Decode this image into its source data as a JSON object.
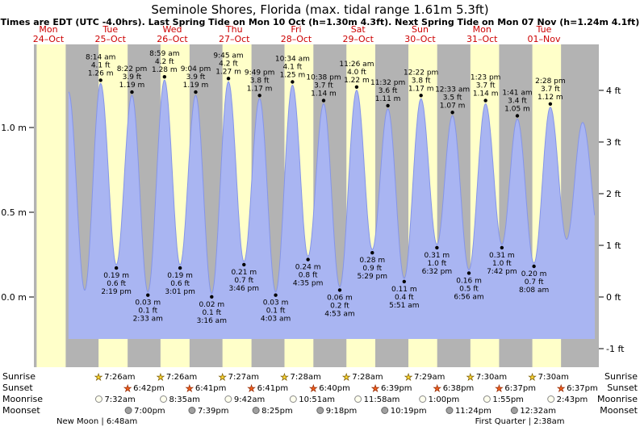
{
  "title": "Seminole Shores, Florida (max. tidal range 1.61m 5.3ft)",
  "subtitle": "Times are EDT (UTC -4.0hrs). Last Spring Tide on Mon 10 Oct (h=1.30m 4.3ft). Next Spring Tide on Mon 07 Nov (h=1.24m 4.1ft)",
  "days": [
    {
      "name": "Mon",
      "date": "24–Oct"
    },
    {
      "name": "Tue",
      "date": "25–Oct"
    },
    {
      "name": "Wed",
      "date": "26–Oct"
    },
    {
      "name": "Thu",
      "date": "27–Oct"
    },
    {
      "name": "Fri",
      "date": "28–Oct"
    },
    {
      "name": "Sat",
      "date": "29–Oct"
    },
    {
      "name": "Sun",
      "date": "30–Oct"
    },
    {
      "name": "Mon",
      "date": "31–Oct"
    },
    {
      "name": "Tue",
      "date": "01–Nov"
    }
  ],
  "y_axis": {
    "left": [
      {
        "text": "1.0 m",
        "value": 1.0
      },
      {
        "text": "0.5 m",
        "value": 0.5
      },
      {
        "text": "0.0 m",
        "value": 0.0
      }
    ],
    "right": [
      {
        "text": "4 ft",
        "ft": 4
      },
      {
        "text": "3 ft",
        "ft": 3
      },
      {
        "text": "2 ft",
        "ft": 2
      },
      {
        "text": "1 ft",
        "ft": 1
      },
      {
        "text": "0 ft",
        "ft": 0
      },
      {
        "text": "-1 ft",
        "ft": -1
      }
    ]
  },
  "colors": {
    "day_label": "#cc0000",
    "night_band": "#b3b3b3",
    "daylight_band": "#ffffc9",
    "water": "#a9b5f2",
    "water_edge": "#8595e8",
    "marker": "#000000",
    "sunrise_star_fill": "#ffd633",
    "sunrise_star_stroke": "#7a5c00",
    "sunset_star_fill": "#f06020",
    "sunset_star_stroke": "#952800",
    "moonrise_fill": "#ffffee",
    "moonrise_stroke": "#888888",
    "moonset_fill": "#a0a0a0",
    "moonset_stroke": "#666666"
  },
  "chart_data": {
    "type": "area",
    "series_name": "tide height",
    "units": [
      "m",
      "ft"
    ],
    "ylim_m": [
      -0.25,
      1.45
    ],
    "grid": false,
    "highs": [
      {
        "day": 1,
        "time": "8:14 am",
        "ft_label": "4.1 ft",
        "m_label": "1.26 m",
        "m": 1.26
      },
      {
        "day": 1,
        "time": "8:22 pm",
        "ft_label": "3.9 ft",
        "m_label": "1.19 m",
        "m": 1.19
      },
      {
        "day": 2,
        "time": "8:59 am",
        "ft_label": "4.2 ft",
        "m_label": "1.28 m",
        "m": 1.28
      },
      {
        "day": 2,
        "time": "9:04 pm",
        "ft_label": "3.9 ft",
        "m_label": "1.19 m",
        "m": 1.19
      },
      {
        "day": 3,
        "time": "9:45 am",
        "ft_label": "4.2 ft",
        "m_label": "1.27 m",
        "m": 1.27
      },
      {
        "day": 3,
        "time": "9:49 pm",
        "ft_label": "3.8 ft",
        "m_label": "1.17 m",
        "m": 1.17
      },
      {
        "day": 4,
        "time": "10:34 am",
        "ft_label": "4.1 ft",
        "m_label": "1.25 m",
        "m": 1.25
      },
      {
        "day": 4,
        "time": "10:38 pm",
        "ft_label": "3.7 ft",
        "m_label": "1.14 m",
        "m": 1.14
      },
      {
        "day": 5,
        "time": "11:26 am",
        "ft_label": "4.0 ft",
        "m_label": "1.22 m",
        "m": 1.22
      },
      {
        "day": 5,
        "time": "11:32 pm",
        "ft_label": "3.6 ft",
        "m_label": "1.11 m",
        "m": 1.11
      },
      {
        "day": 6,
        "time": "12:22 pm",
        "ft_label": "3.8 ft",
        "m_label": "1.17 m",
        "m": 1.17
      },
      {
        "day": 7,
        "time": "12:33 am",
        "ft_label": "3.5 ft",
        "m_label": "1.07 m",
        "m": 1.07
      },
      {
        "day": 7,
        "time": "1:23 pm",
        "ft_label": "3.7 ft",
        "m_label": "1.14 m",
        "m": 1.14
      },
      {
        "day": 8,
        "time": "1:41 am",
        "ft_label": "3.4 ft",
        "m_label": "1.05 m",
        "m": 1.05
      },
      {
        "day": 8,
        "time": "2:28 pm",
        "ft_label": "3.7 ft",
        "m_label": "1.12 m",
        "m": 1.12
      }
    ],
    "lows": [
      {
        "day": 1,
        "time": "2:19 pm",
        "ft_label": "0.6 ft",
        "m_label": "0.19 m",
        "m": 0.19
      },
      {
        "day": 2,
        "time": "2:33 am",
        "ft_label": "0.1 ft",
        "m_label": "0.03 m",
        "m": 0.03
      },
      {
        "day": 2,
        "time": "3:01 pm",
        "ft_label": "0.6 ft",
        "m_label": "0.19 m",
        "m": 0.19
      },
      {
        "day": 3,
        "time": "3:16 am",
        "ft_label": "0.1 ft",
        "m_label": "0.02 m",
        "m": 0.02
      },
      {
        "day": 3,
        "time": "3:46 pm",
        "ft_label": "0.7 ft",
        "m_label": "0.21 m",
        "m": 0.21
      },
      {
        "day": 4,
        "time": "4:03 am",
        "ft_label": "0.1 ft",
        "m_label": "0.03 m",
        "m": 0.03
      },
      {
        "day": 4,
        "time": "4:35 pm",
        "ft_label": "0.8 ft",
        "m_label": "0.24 m",
        "m": 0.24
      },
      {
        "day": 5,
        "time": "4:53 am",
        "ft_label": "0.2 ft",
        "m_label": "0.06 m",
        "m": 0.06
      },
      {
        "day": 5,
        "time": "5:29 pm",
        "ft_label": "0.9 ft",
        "m_label": "0.28 m",
        "m": 0.28
      },
      {
        "day": 6,
        "time": "5:51 am",
        "ft_label": "0.4 ft",
        "m_label": "0.11 m",
        "m": 0.11
      },
      {
        "day": 6,
        "time": "6:32 pm",
        "ft_label": "1.0 ft",
        "m_label": "0.31 m",
        "m": 0.31
      },
      {
        "day": 7,
        "time": "6:56 am",
        "ft_label": "0.5 ft",
        "m_label": "0.16 m",
        "m": 0.16
      },
      {
        "day": 7,
        "time": "7:42 pm",
        "ft_label": "1.0 ft",
        "m_label": "0.31 m",
        "m": 0.31
      },
      {
        "day": 8,
        "time": "8:08 am",
        "ft_label": "0.7 ft",
        "m_label": "0.20 m",
        "m": 0.2
      }
    ],
    "edge_points": [
      {
        "day": 0,
        "time": "7:48 pm",
        "m": 1.21
      },
      {
        "day": 1,
        "time": "2:05 am",
        "m": 0.04
      },
      {
        "day": 8,
        "time": "8:47 pm",
        "m": 0.34
      },
      {
        "day": 9,
        "time": "3:00 am",
        "m": 1.03
      }
    ]
  },
  "astro": {
    "rows": [
      {
        "label": "Sunrise",
        "icon": "star",
        "icon_name": "sunrise-icon",
        "items": [
          {
            "day": 1,
            "time": "7:26am"
          },
          {
            "day": 2,
            "time": "7:26am"
          },
          {
            "day": 3,
            "time": "7:27am"
          },
          {
            "day": 4,
            "time": "7:28am"
          },
          {
            "day": 5,
            "time": "7:28am"
          },
          {
            "day": 6,
            "time": "7:29am"
          },
          {
            "day": 7,
            "time": "7:30am"
          },
          {
            "day": 8,
            "time": "7:30am"
          }
        ]
      },
      {
        "label": "Sunset",
        "icon": "star",
        "icon_name": "sunset-icon",
        "items": [
          {
            "day": 1,
            "time": "6:42pm"
          },
          {
            "day": 2,
            "time": "6:41pm"
          },
          {
            "day": 3,
            "time": "6:41pm"
          },
          {
            "day": 4,
            "time": "6:40pm"
          },
          {
            "day": 5,
            "time": "6:39pm"
          },
          {
            "day": 6,
            "time": "6:38pm"
          },
          {
            "day": 7,
            "time": "6:37pm"
          },
          {
            "day": 8,
            "time": "6:37pm"
          }
        ]
      },
      {
        "label": "Moonrise",
        "icon": "circle",
        "icon_name": "moonrise-icon",
        "items": [
          {
            "day": 1,
            "time": "7:32am"
          },
          {
            "day": 2,
            "time": "8:35am"
          },
          {
            "day": 3,
            "time": "9:42am"
          },
          {
            "day": 4,
            "time": "10:51am"
          },
          {
            "day": 5,
            "time": "11:58am"
          },
          {
            "day": 6,
            "time": "1:00pm"
          },
          {
            "day": 7,
            "time": "1:55pm"
          },
          {
            "day": 8,
            "time": "2:43pm"
          }
        ]
      },
      {
        "label": "Moonset",
        "icon": "circle",
        "icon_name": "moonset-icon",
        "items": [
          {
            "day": 1,
            "time": "7:00pm"
          },
          {
            "day": 2,
            "time": "7:39pm"
          },
          {
            "day": 3,
            "time": "8:25pm"
          },
          {
            "day": 4,
            "time": "9:18pm"
          },
          {
            "day": 5,
            "time": "10:19pm"
          },
          {
            "day": 6,
            "time": "11:24pm"
          },
          {
            "day": 8,
            "time": "12:32am"
          }
        ]
      }
    ],
    "notes": [
      {
        "text": "New Moon | 6:48am",
        "day": 1,
        "time": "6:48am"
      },
      {
        "text": "First Quarter | 2:38am",
        "day": 8,
        "time": "2:38am"
      }
    ]
  }
}
